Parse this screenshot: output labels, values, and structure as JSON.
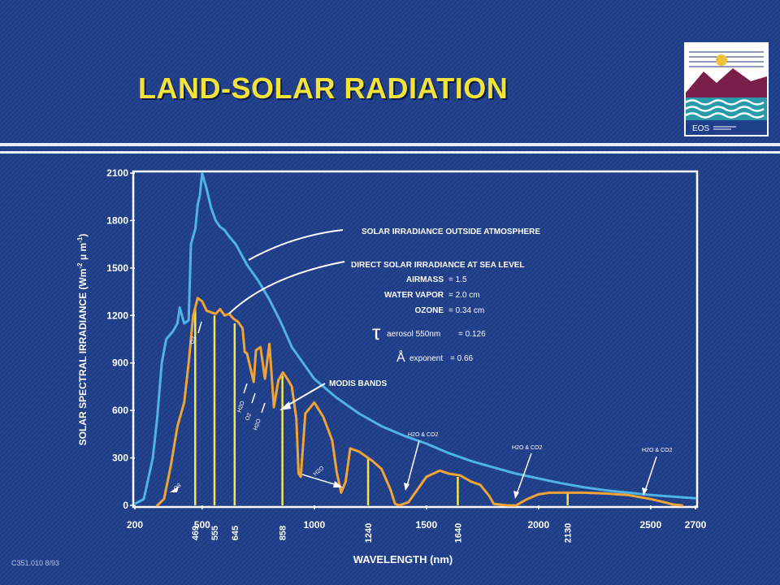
{
  "slide": {
    "title": "LAND-SOLAR RADIATION",
    "logo_text": "EOS",
    "credit": "C351.010 8/93"
  },
  "colors": {
    "background": "#1f3f8a",
    "title": "#f2e23a",
    "plot_border": "#ffffff",
    "solar_outside": "#4fb3e8",
    "solar_sea_level": "#f0a436",
    "modis_band": "#f4e64a",
    "arrow": "#ffffff"
  },
  "chart_data": {
    "type": "line",
    "title": "",
    "xlabel": "WAVELENGTH (nm)",
    "ylabel": "SOLAR SPECTRAL IRRADIANCE (Wm-2 μm-1)",
    "ylabel_parts": [
      "SOLAR SPECTRAL IRRADIANCE (Wm",
      "-2",
      " μ m",
      "-1",
      ")"
    ],
    "xlim": [
      200,
      2700
    ],
    "ylim": [
      0,
      2100
    ],
    "x_ticks": [
      200,
      500,
      1000,
      1500,
      2000,
      2500,
      2700
    ],
    "x_tick_labels": [
      "200",
      "500",
      "1000",
      "1500",
      "2000",
      "2500",
      "2700"
    ],
    "y_ticks": [
      0,
      300,
      600,
      900,
      1200,
      1500,
      1800,
      2100
    ],
    "y_tick_labels": [
      "0",
      "300",
      "600",
      "900",
      "1200",
      "1500",
      "1800",
      "2100"
    ],
    "grid": false,
    "series": [
      {
        "key": "outside",
        "color": "#4fb3e8",
        "points": [
          [
            200,
            10
          ],
          [
            240,
            40
          ],
          [
            280,
            300
          ],
          [
            300,
            560
          ],
          [
            320,
            900
          ],
          [
            340,
            1050
          ],
          [
            370,
            1100
          ],
          [
            390,
            1150
          ],
          [
            400,
            1250
          ],
          [
            420,
            1150
          ],
          [
            440,
            1170
          ],
          [
            450,
            1650
          ],
          [
            470,
            1750
          ],
          [
            480,
            1900
          ],
          [
            490,
            1960
          ],
          [
            500,
            2100
          ],
          [
            520,
            2000
          ],
          [
            540,
            1880
          ],
          [
            560,
            1800
          ],
          [
            580,
            1760
          ],
          [
            600,
            1740
          ],
          [
            620,
            1700
          ],
          [
            650,
            1650
          ],
          [
            700,
            1520
          ],
          [
            750,
            1420
          ],
          [
            800,
            1300
          ],
          [
            850,
            1160
          ],
          [
            900,
            1000
          ],
          [
            950,
            900
          ],
          [
            1000,
            800
          ],
          [
            1100,
            680
          ],
          [
            1200,
            580
          ],
          [
            1300,
            500
          ],
          [
            1400,
            440
          ],
          [
            1500,
            390
          ],
          [
            1600,
            330
          ],
          [
            1700,
            280
          ],
          [
            1800,
            240
          ],
          [
            1900,
            200
          ],
          [
            2000,
            170
          ],
          [
            2100,
            140
          ],
          [
            2200,
            115
          ],
          [
            2300,
            95
          ],
          [
            2400,
            80
          ],
          [
            2500,
            65
          ],
          [
            2600,
            55
          ],
          [
            2700,
            45
          ]
        ]
      },
      {
        "key": "sea_level",
        "color": "#f0a436",
        "points": [
          [
            300,
            0
          ],
          [
            330,
            40
          ],
          [
            360,
            250
          ],
          [
            390,
            500
          ],
          [
            420,
            650
          ],
          [
            440,
            900
          ],
          [
            460,
            1200
          ],
          [
            480,
            1310
          ],
          [
            500,
            1290
          ],
          [
            520,
            1230
          ],
          [
            540,
            1220
          ],
          [
            560,
            1210
          ],
          [
            580,
            1240
          ],
          [
            600,
            1200
          ],
          [
            620,
            1210
          ],
          [
            640,
            1180
          ],
          [
            660,
            1160
          ],
          [
            680,
            1120
          ],
          [
            690,
            970
          ],
          [
            700,
            960
          ],
          [
            720,
            840
          ],
          [
            730,
            780
          ],
          [
            740,
            980
          ],
          [
            760,
            1000
          ],
          [
            780,
            800
          ],
          [
            800,
            1020
          ],
          [
            820,
            620
          ],
          [
            840,
            790
          ],
          [
            860,
            840
          ],
          [
            880,
            800
          ],
          [
            900,
            750
          ],
          [
            920,
            550
          ],
          [
            930,
            200
          ],
          [
            940,
            180
          ],
          [
            960,
            580
          ],
          [
            1000,
            650
          ],
          [
            1040,
            560
          ],
          [
            1080,
            410
          ],
          [
            1100,
            210
          ],
          [
            1120,
            80
          ],
          [
            1140,
            150
          ],
          [
            1160,
            360
          ],
          [
            1200,
            340
          ],
          [
            1240,
            300
          ],
          [
            1260,
            280
          ],
          [
            1300,
            230
          ],
          [
            1340,
            100
          ],
          [
            1360,
            10
          ],
          [
            1380,
            0
          ],
          [
            1420,
            20
          ],
          [
            1440,
            60
          ],
          [
            1460,
            100
          ],
          [
            1500,
            180
          ],
          [
            1560,
            220
          ],
          [
            1600,
            200
          ],
          [
            1650,
            190
          ],
          [
            1700,
            150
          ],
          [
            1740,
            130
          ],
          [
            1780,
            60
          ],
          [
            1800,
            10
          ],
          [
            1860,
            0
          ],
          [
            1900,
            0
          ],
          [
            1950,
            40
          ],
          [
            2000,
            70
          ],
          [
            2050,
            80
          ],
          [
            2100,
            80
          ],
          [
            2150,
            80
          ],
          [
            2200,
            80
          ],
          [
            2300,
            75
          ],
          [
            2400,
            65
          ],
          [
            2500,
            40
          ],
          [
            2560,
            20
          ],
          [
            2600,
            5
          ],
          [
            2640,
            0
          ]
        ]
      }
    ],
    "modis_bands": {
      "color": "#f4e64a",
      "bands": [
        {
          "x": 469,
          "label": "469",
          "y": 1250
        },
        {
          "x": 555,
          "label": "555",
          "y": 1200
        },
        {
          "x": 645,
          "label": "645",
          "y": 1150
        },
        {
          "x": 858,
          "label": "858",
          "y": 820
        },
        {
          "x": 1240,
          "label": "1240",
          "y": 300
        },
        {
          "x": 1640,
          "label": "1640",
          "y": 180
        },
        {
          "x": 2130,
          "label": "2130",
          "y": 80
        }
      ]
    },
    "annotations": {
      "outside_label": "SOLAR IRRADIANCE OUTSIDE ATMOSPHERE",
      "sea_level_label": "DIRECT SOLAR IRRADIANCE AT SEA LEVEL",
      "conditions": [
        {
          "name": "AIRMASS",
          "value": "= 1.5"
        },
        {
          "name": "WATER VAPOR",
          "value": "= 2.0 cm"
        },
        {
          "name": "OZONE",
          "value": "= 0.34 cm"
        }
      ],
      "aerosol": {
        "symbol": "τ",
        "sub": "aerosol 550nm",
        "value": "= 0.126"
      },
      "angstrom": {
        "symbol": "Å",
        "name": "exponent",
        "value": "= 0.66"
      },
      "modis_label": "MODIS BANDS",
      "absorbers": {
        "o3_left": "O3",
        "o3_top": "O3",
        "h2o_1": "H2O",
        "o2": "O2",
        "h2o_2": "H2O",
        "h2o_1100": "H2O",
        "h2o_co2_1": "H2O & CO2",
        "h2o_co2_2": "H2O & CO2",
        "h2o_co2_3": "H2O & CO2"
      }
    }
  }
}
